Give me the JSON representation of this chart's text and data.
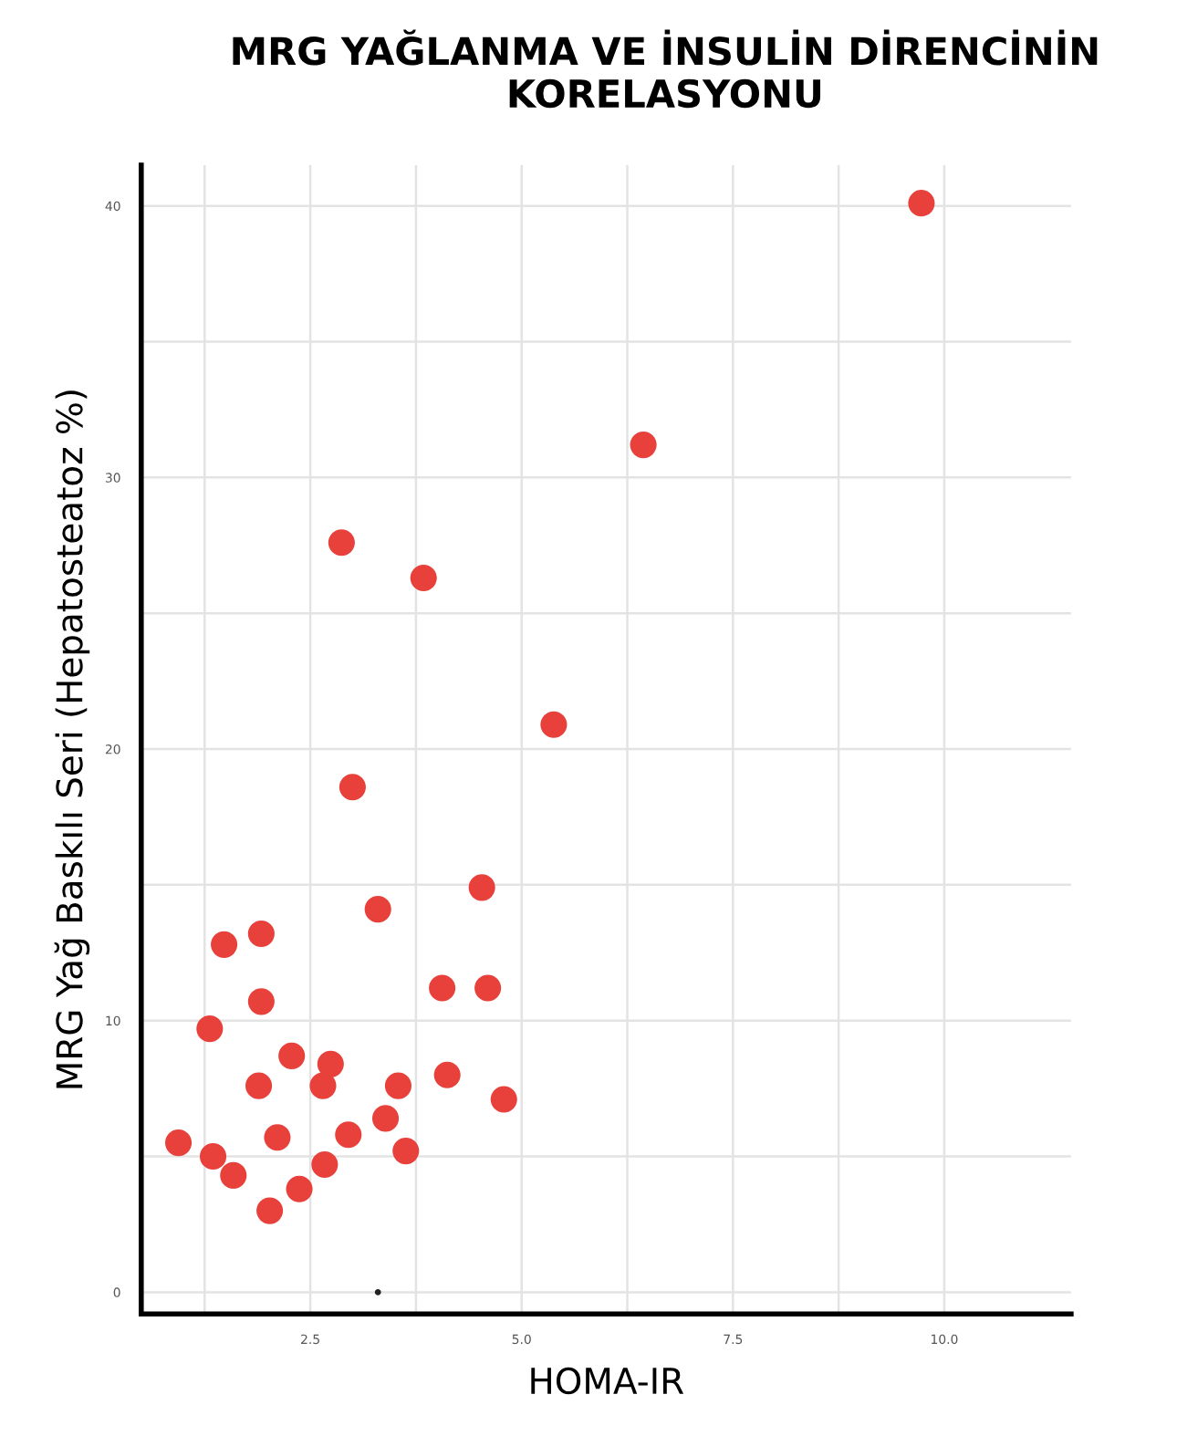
{
  "chart_data": {
    "type": "scatter",
    "title": "MRG YAĞLANMA VE İNSULİN DİRENCİNİN KORELASYONU",
    "xlabel": "HOMA-IR",
    "ylabel": "MRG Yağ Baskılı Seri (Hepatosteatoz %)",
    "series": [
      {
        "color": "#e8403a",
        "x": [
          9.73,
          6.44,
          2.87,
          3.84,
          5.38,
          3.0,
          3.3,
          4.53,
          1.48,
          1.92,
          4.06,
          4.6,
          1.92,
          1.31,
          2.28,
          2.74,
          1.89,
          2.65,
          3.54,
          4.12,
          4.79,
          3.39,
          2.95,
          2.11,
          0.94,
          1.35,
          3.63,
          2.67,
          1.59,
          2.37,
          2.02
        ],
        "values": [
          40.1,
          31.2,
          27.6,
          26.3,
          20.9,
          18.6,
          14.1,
          14.9,
          12.8,
          13.2,
          11.2,
          11.2,
          10.7,
          9.7,
          8.7,
          8.4,
          7.6,
          7.6,
          7.6,
          8.0,
          7.1,
          6.4,
          5.8,
          5.7,
          5.5,
          5.0,
          5.2,
          4.7,
          4.3,
          3.8,
          3.0
        ]
      },
      {
        "color": "#222222",
        "x": [
          3.3
        ],
        "values": [
          0.0
        ]
      }
    ],
    "xlim": [
      0.5,
      11.5
    ],
    "ylim": [
      -0.8,
      41.5
    ],
    "xticks": [
      {
        "value": 1.25,
        "label": null
      },
      2.5,
      {
        "value": 3.75,
        "label": null
      },
      {
        "value": 5.0,
        "label": "5.0"
      },
      {
        "value": 6.25,
        "label": null
      },
      7.5,
      {
        "value": 8.75,
        "label": null
      },
      {
        "value": 10.0,
        "label": "10.0"
      }
    ],
    "yticks": [
      0,
      {
        "value": 5,
        "label": null
      },
      10,
      {
        "value": 15,
        "label": null
      },
      20,
      {
        "value": 25,
        "label": null
      },
      30,
      {
        "value": 35,
        "label": null
      },
      40
    ],
    "grid": true,
    "marker": "circle"
  }
}
